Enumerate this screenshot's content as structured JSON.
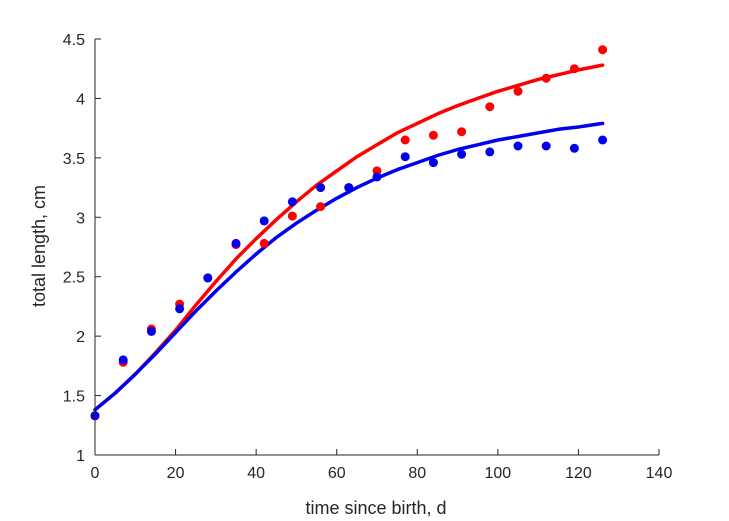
{
  "chart_data": {
    "type": "scatter",
    "xlabel": "time since birth, d",
    "ylabel": "total length, cm",
    "xlim": [
      0,
      140
    ],
    "ylim": [
      1,
      4.5
    ],
    "xticks": [
      0,
      20,
      40,
      60,
      80,
      100,
      120,
      140
    ],
    "yticks": [
      1,
      1.5,
      2,
      2.5,
      3,
      3.5,
      4,
      4.5
    ],
    "xtick_labels": [
      "0",
      "20",
      "40",
      "60",
      "80",
      "100",
      "120",
      "140"
    ],
    "ytick_labels": [
      "1",
      "1.5",
      "2",
      "2.5",
      "3",
      "3.5",
      "4",
      "4.5"
    ],
    "grid": false,
    "series": [
      {
        "color": "#ff0000",
        "points": [
          [
            0,
            1.33
          ],
          [
            7,
            1.78
          ],
          [
            14,
            2.06
          ],
          [
            21,
            2.27
          ],
          [
            28,
            2.49
          ],
          [
            35,
            2.77
          ],
          [
            42,
            2.78
          ],
          [
            49,
            3.01
          ],
          [
            56,
            3.09
          ],
          [
            63,
            3.25
          ],
          [
            70,
            3.39
          ],
          [
            77,
            3.65
          ],
          [
            84,
            3.69
          ],
          [
            91,
            3.72
          ],
          [
            98,
            3.93
          ],
          [
            105,
            4.06
          ],
          [
            112,
            4.17
          ],
          [
            119,
            4.25
          ],
          [
            126,
            4.41
          ]
        ],
        "fit": [
          [
            0,
            1.38
          ],
          [
            5,
            1.52
          ],
          [
            10,
            1.68
          ],
          [
            15,
            1.86
          ],
          [
            20,
            2.05
          ],
          [
            25,
            2.26
          ],
          [
            30,
            2.46
          ],
          [
            35,
            2.65
          ],
          [
            40,
            2.82
          ],
          [
            45,
            2.98
          ],
          [
            50,
            3.13
          ],
          [
            55,
            3.27
          ],
          [
            60,
            3.39
          ],
          [
            65,
            3.51
          ],
          [
            70,
            3.61
          ],
          [
            75,
            3.71
          ],
          [
            80,
            3.79
          ],
          [
            85,
            3.87
          ],
          [
            90,
            3.94
          ],
          [
            95,
            4.0
          ],
          [
            100,
            4.06
          ],
          [
            105,
            4.11
          ],
          [
            110,
            4.16
          ],
          [
            115,
            4.2
          ],
          [
            120,
            4.24
          ],
          [
            126,
            4.28
          ]
        ]
      },
      {
        "color": "#0000ee",
        "points": [
          [
            0,
            1.33
          ],
          [
            7,
            1.8
          ],
          [
            14,
            2.04
          ],
          [
            21,
            2.23
          ],
          [
            28,
            2.49
          ],
          [
            35,
            2.78
          ],
          [
            42,
            2.97
          ],
          [
            49,
            3.13
          ],
          [
            56,
            3.25
          ],
          [
            63,
            3.25
          ],
          [
            70,
            3.34
          ],
          [
            77,
            3.51
          ],
          [
            84,
            3.46
          ],
          [
            91,
            3.53
          ],
          [
            98,
            3.55
          ],
          [
            105,
            3.6
          ],
          [
            112,
            3.6
          ],
          [
            119,
            3.58
          ],
          [
            126,
            3.65
          ]
        ],
        "fit": [
          [
            0,
            1.38
          ],
          [
            5,
            1.52
          ],
          [
            10,
            1.68
          ],
          [
            15,
            1.85
          ],
          [
            20,
            2.03
          ],
          [
            25,
            2.21
          ],
          [
            30,
            2.38
          ],
          [
            35,
            2.54
          ],
          [
            40,
            2.69
          ],
          [
            45,
            2.83
          ],
          [
            50,
            2.95
          ],
          [
            55,
            3.06
          ],
          [
            60,
            3.16
          ],
          [
            65,
            3.25
          ],
          [
            70,
            3.33
          ],
          [
            75,
            3.4
          ],
          [
            80,
            3.46
          ],
          [
            85,
            3.52
          ],
          [
            90,
            3.57
          ],
          [
            95,
            3.61
          ],
          [
            100,
            3.65
          ],
          [
            105,
            3.68
          ],
          [
            110,
            3.71
          ],
          [
            115,
            3.74
          ],
          [
            120,
            3.76
          ],
          [
            126,
            3.79
          ]
        ]
      }
    ]
  }
}
